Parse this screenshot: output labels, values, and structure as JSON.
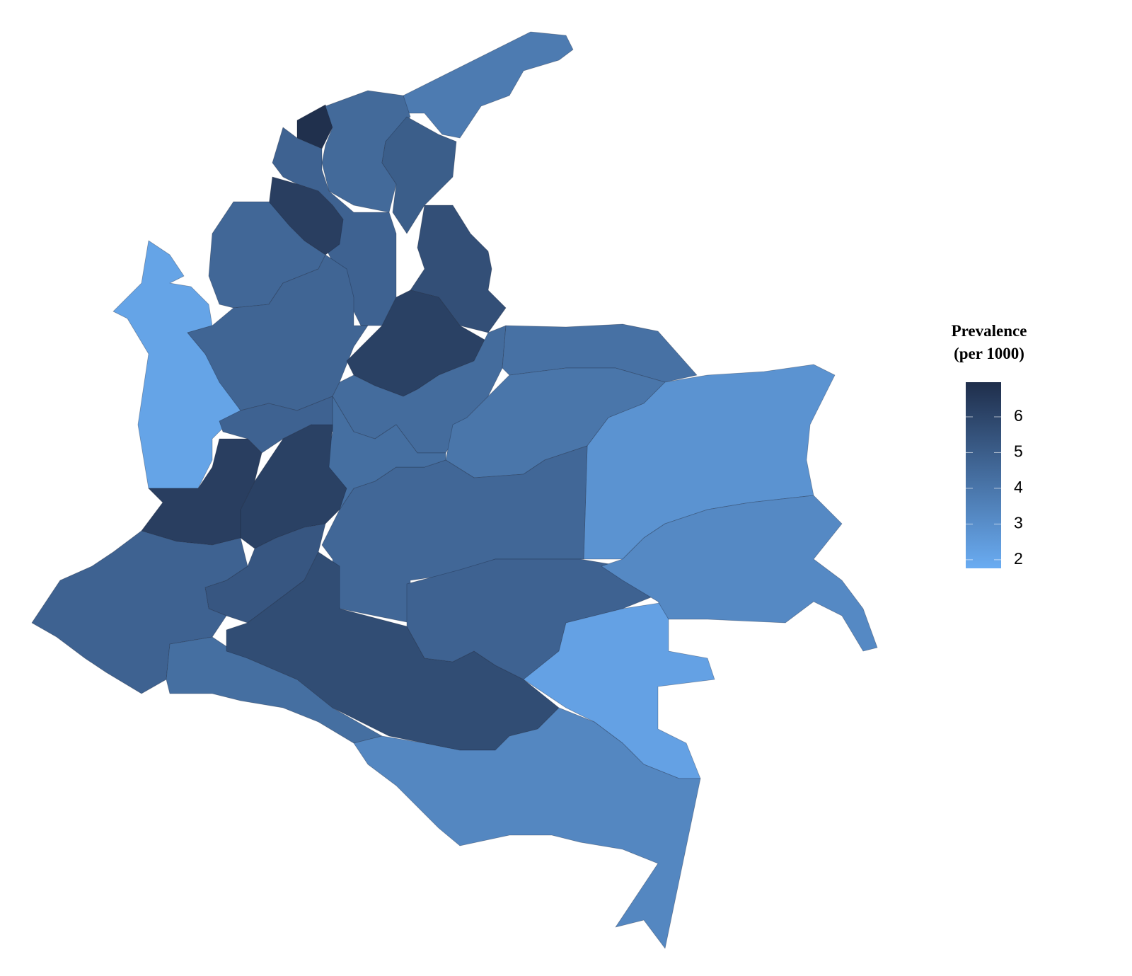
{
  "chart_data": {
    "type": "choropleth",
    "legend_title": [
      "Prevalence",
      "(per 1000)"
    ],
    "values": [
      3.8,
      6.9,
      4.5,
      5.0,
      4.8,
      6.3,
      4.6,
      2.1,
      4.7,
      5.6,
      6.2,
      4.4,
      4.2,
      4.0,
      2.8,
      4.6,
      4.3,
      4.8,
      6.2,
      6.3,
      5.3,
      4.8,
      4.3,
      5.7,
      4.8,
      2.2,
      3.2,
      3.3
    ],
    "colorscale": [
      "#6aacf2",
      "#1f2e4b"
    ],
    "clim": [
      1.76,
      6.97
    ],
    "cticks": [
      2,
      3,
      4,
      5,
      6
    ],
    "legend": "right"
  }
}
